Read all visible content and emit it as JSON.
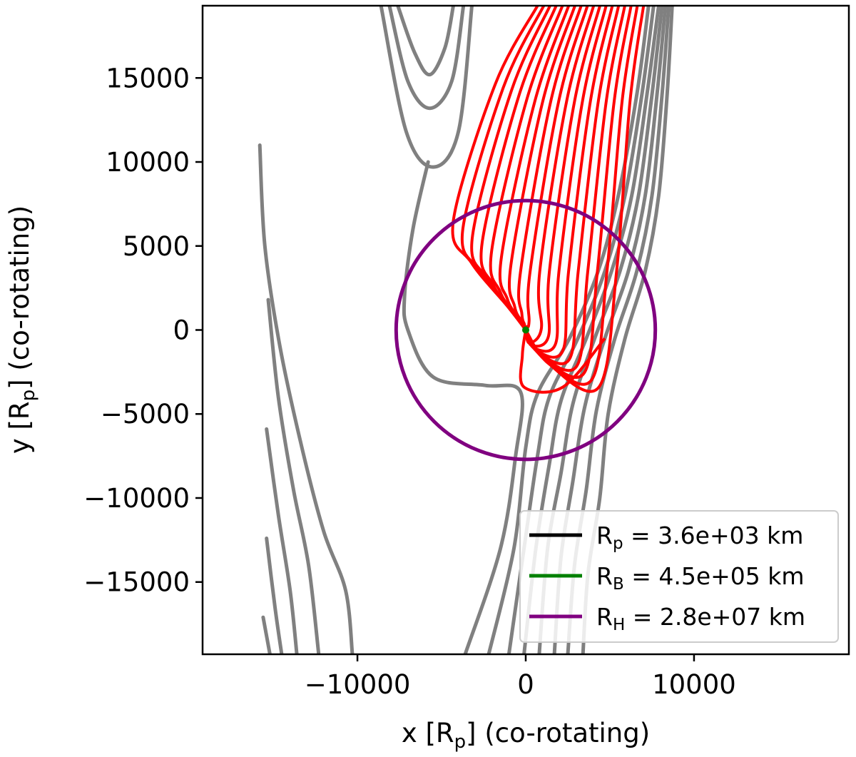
{
  "chart_data": {
    "type": "line",
    "title": "",
    "xlabel": "x [R",
    "xlabel_sub": "p",
    "xlabel_rest": "] (co-rotating)",
    "ylabel": "y [R",
    "ylabel_sub": "p",
    "ylabel_rest": "] (co-rotating)",
    "xlim": [
      -19200,
      19200
    ],
    "ylim": [
      -19300,
      19300
    ],
    "xticks": [
      {
        "value": -10000,
        "label": "−10000"
      },
      {
        "value": 0,
        "label": "0"
      },
      {
        "value": 10000,
        "label": "10000"
      }
    ],
    "yticks": [
      {
        "value": 15000,
        "label": "15000"
      },
      {
        "value": 10000,
        "label": "10000"
      },
      {
        "value": 5000,
        "label": "5000"
      },
      {
        "value": 0,
        "label": "0"
      },
      {
        "value": -5000,
        "label": "−5000"
      },
      {
        "value": -10000,
        "label": "−10000"
      },
      {
        "value": -15000,
        "label": "−15000"
      }
    ],
    "grid": false,
    "legend_position": "lower-right",
    "legend": [
      {
        "name": "R",
        "sub": "p",
        "rest": " = 3.6e+03 km",
        "color": "#000000"
      },
      {
        "name": "R",
        "sub": "B",
        "rest": " = 4.5e+05 km",
        "color": "#008000"
      },
      {
        "name": "R",
        "sub": "H",
        "rest": " = 2.8e+07 km",
        "color": "#800080"
      }
    ],
    "hill_sphere": {
      "cx": 0,
      "cy": 0,
      "r": 7700,
      "color": "#800080"
    },
    "bondi_marker": {
      "x": 0,
      "y": 0,
      "color": "#008000"
    },
    "colors": {
      "accreted": "#ff0000",
      "passing": "#808080"
    },
    "accreted_streamlines": {
      "count": 18,
      "start_y": 19300,
      "start_x_range": [
        700,
        7000
      ],
      "turn_y_range": [
        4000,
        -3400
      ],
      "end": [
        0,
        0
      ]
    },
    "passing_streamlines": [
      {
        "name": "horseshoe-1",
        "points": [
          [
            -7600,
            19300
          ],
          [
            -6600,
            16500
          ],
          [
            -5700,
            15200
          ],
          [
            -4800,
            16800
          ],
          [
            -4300,
            19300
          ]
        ]
      },
      {
        "name": "horseshoe-2",
        "points": [
          [
            -8100,
            19300
          ],
          [
            -7000,
            14800
          ],
          [
            -5700,
            13200
          ],
          [
            -4400,
            14800
          ],
          [
            -3700,
            19300
          ]
        ]
      },
      {
        "name": "horseshoe-3",
        "points": [
          [
            -8600,
            19300
          ],
          [
            -7100,
            11800
          ],
          [
            -5500,
            9700
          ],
          [
            -4000,
            11800
          ],
          [
            -3200,
            19300
          ]
        ]
      },
      {
        "name": "deflected-inner",
        "points": [
          [
            -5800,
            10000
          ],
          [
            -6700,
            6000
          ],
          [
            -7200,
            2000
          ],
          [
            -7000,
            0
          ],
          [
            -5500,
            -2800
          ],
          [
            -2400,
            -3300
          ],
          [
            -300,
            -3700
          ],
          [
            -600,
            -7500
          ],
          [
            -1500,
            -13000
          ],
          [
            -3600,
            -19300
          ]
        ]
      },
      {
        "name": "far-left-1",
        "points": [
          [
            -15800,
            11000
          ],
          [
            -15500,
            5000
          ],
          [
            -14600,
            -1000
          ],
          [
            -13300,
            -7000
          ],
          [
            -12000,
            -12000
          ],
          [
            -10700,
            -15500
          ],
          [
            -10300,
            -19300
          ]
        ]
      },
      {
        "name": "far-left-2",
        "points": [
          [
            -15300,
            1800
          ],
          [
            -14700,
            -4000
          ],
          [
            -13800,
            -9500
          ],
          [
            -12900,
            -14000
          ],
          [
            -12300,
            -19300
          ]
        ]
      },
      {
        "name": "far-left-3",
        "points": [
          [
            -15400,
            -5900
          ],
          [
            -14700,
            -11000
          ],
          [
            -14000,
            -15500
          ],
          [
            -13600,
            -19300
          ]
        ]
      },
      {
        "name": "far-left-4",
        "points": [
          [
            -15400,
            -12400
          ],
          [
            -14900,
            -16500
          ],
          [
            -14500,
            -19300
          ]
        ]
      },
      {
        "name": "far-left-5",
        "points": [
          [
            -15600,
            -17100
          ],
          [
            -15200,
            -19300
          ]
        ]
      },
      {
        "name": "right-1",
        "points": [
          [
            7300,
            19300
          ],
          [
            6600,
            14000
          ],
          [
            5500,
            8000
          ],
          [
            4300,
            3500
          ],
          [
            2600,
            -500
          ],
          [
            700,
            -3800
          ],
          [
            0,
            -7000
          ],
          [
            -700,
            -13000
          ],
          [
            -2200,
            -19300
          ]
        ]
      },
      {
        "name": "right-2",
        "points": [
          [
            7600,
            19300
          ],
          [
            6900,
            14000
          ],
          [
            5900,
            8000
          ],
          [
            4700,
            3500
          ],
          [
            3100,
            -500
          ],
          [
            1400,
            -4000
          ],
          [
            700,
            -7500
          ],
          [
            -100,
            -13000
          ],
          [
            -1000,
            -19300
          ]
        ]
      },
      {
        "name": "right-3",
        "points": [
          [
            7900,
            19300
          ],
          [
            7200,
            14000
          ],
          [
            6300,
            8000
          ],
          [
            5100,
            3500
          ],
          [
            3600,
            -500
          ],
          [
            2100,
            -4200
          ],
          [
            1400,
            -8000
          ],
          [
            600,
            -13000
          ],
          [
            -100,
            -19300
          ]
        ]
      },
      {
        "name": "right-4",
        "points": [
          [
            8100,
            19300
          ],
          [
            7500,
            14000
          ],
          [
            6700,
            8000
          ],
          [
            5600,
            3500
          ],
          [
            4100,
            -500
          ],
          [
            2800,
            -4400
          ],
          [
            2100,
            -8500
          ],
          [
            1300,
            -13000
          ],
          [
            800,
            -19300
          ]
        ]
      },
      {
        "name": "right-5",
        "points": [
          [
            8300,
            19300
          ],
          [
            7800,
            14000
          ],
          [
            7100,
            8000
          ],
          [
            6100,
            3500
          ],
          [
            4700,
            -500
          ],
          [
            3500,
            -4600
          ],
          [
            2800,
            -9000
          ],
          [
            2100,
            -13500
          ],
          [
            1700,
            -19300
          ]
        ]
      },
      {
        "name": "right-6",
        "points": [
          [
            8500,
            19300
          ],
          [
            8100,
            14000
          ],
          [
            7500,
            8000
          ],
          [
            6600,
            3500
          ],
          [
            5300,
            -500
          ],
          [
            4200,
            -4800
          ],
          [
            3600,
            -9500
          ],
          [
            2900,
            -14000
          ],
          [
            2500,
            -19300
          ]
        ]
      },
      {
        "name": "right-7",
        "points": [
          [
            8700,
            19300
          ],
          [
            8400,
            14000
          ],
          [
            7900,
            8000
          ],
          [
            7100,
            3500
          ],
          [
            5900,
            -500
          ],
          [
            4900,
            -5000
          ],
          [
            4400,
            -10000
          ],
          [
            3700,
            -14500
          ],
          [
            3400,
            -19300
          ]
        ]
      }
    ]
  }
}
